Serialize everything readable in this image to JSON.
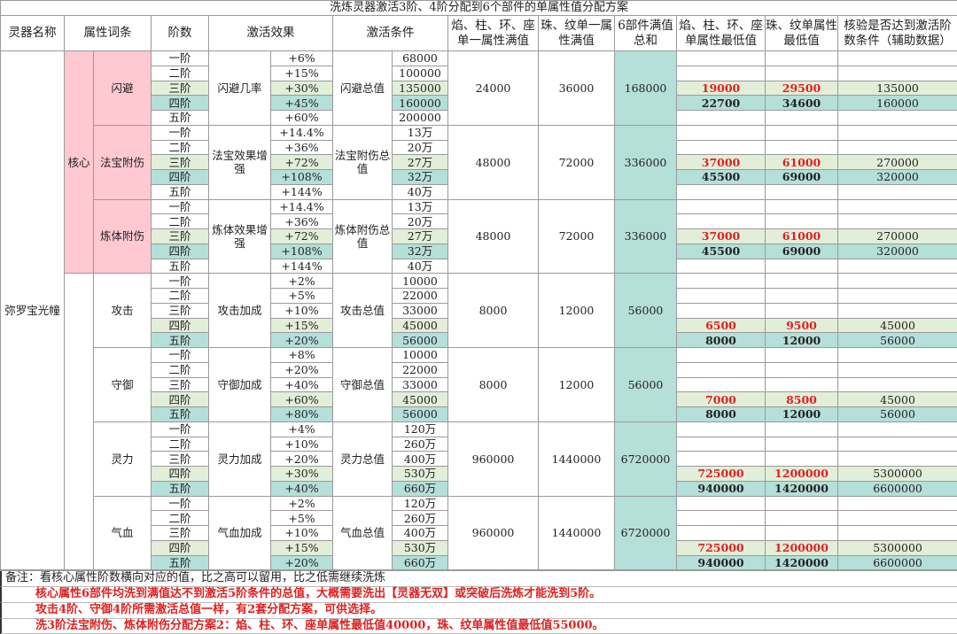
{
  "title": "洗炼灵器激活3阶、4阶分配到6个部件的单属性值分配方案",
  "headers": [
    "灵器名称",
    "属性词条",
    "阶数",
    "激活效果",
    "激活条件",
    "焰、柱、环、座单一属性满值",
    "珠、纹单一属性满值",
    "6部件满值总和",
    "焰、柱、环、座单属性最低值",
    "珠、纹单属性最低值",
    "核验是否达到激活阶数条件（辅助数据）"
  ],
  "item_name": "弥罗宝光幢",
  "core_label": "核心",
  "colors": {
    "pink": "#ffc9d2",
    "green": "#e3eed9",
    "teal": "#b5dfd9",
    "red": "#e02020"
  },
  "groups": [
    {
      "attr": "闪避",
      "core": true,
      "effect_name": "闪避几率",
      "cond_name": "闪避总值",
      "tiers": [
        "一阶",
        "二阶",
        "三阶",
        "四阶",
        "五阶"
      ],
      "effects": [
        "+6%",
        "+15%",
        "+30%",
        "+45%",
        "+60%"
      ],
      "conds": [
        "68000",
        "100000",
        "135000",
        "160000",
        "200000"
      ],
      "full_a": "24000",
      "full_b": "36000",
      "total": "168000",
      "mins": [
        {
          "tier": "三阶",
          "a": "19000",
          "b": "29500",
          "check": "135000"
        },
        {
          "tier": "四阶",
          "a": "22700",
          "b": "34600",
          "check": "160000"
        }
      ]
    },
    {
      "attr": "法宝附伤",
      "core": true,
      "effect_name": "法宝效果增强",
      "cond_name": "法宝附伤总值",
      "tiers": [
        "一阶",
        "二阶",
        "三阶",
        "四阶",
        "五阶"
      ],
      "effects": [
        "+14.4%",
        "+36%",
        "+72%",
        "+108%",
        "+144%"
      ],
      "conds": [
        "13万",
        "20万",
        "27万",
        "32万",
        "40万"
      ],
      "full_a": "48000",
      "full_b": "72000",
      "total": "336000",
      "mins": [
        {
          "tier": "三阶",
          "a": "37000",
          "b": "61000",
          "check": "270000"
        },
        {
          "tier": "四阶",
          "a": "45500",
          "b": "69000",
          "check": "320000"
        }
      ]
    },
    {
      "attr": "炼体附伤",
      "core": true,
      "effect_name": "炼体效果增强",
      "cond_name": "炼体附伤总值",
      "tiers": [
        "一阶",
        "二阶",
        "三阶",
        "四阶",
        "五阶"
      ],
      "effects": [
        "+14.4%",
        "+36%",
        "+72%",
        "+108%",
        "+144%"
      ],
      "conds": [
        "13万",
        "20万",
        "27万",
        "32万",
        "40万"
      ],
      "full_a": "48000",
      "full_b": "72000",
      "total": "336000",
      "mins": [
        {
          "tier": "三阶",
          "a": "37000",
          "b": "61000",
          "check": "270000"
        },
        {
          "tier": "四阶",
          "a": "45500",
          "b": "69000",
          "check": "320000"
        }
      ]
    },
    {
      "attr": "攻击",
      "core": false,
      "effect_name": "攻击加成",
      "cond_name": "攻击总值",
      "tiers": [
        "一阶",
        "二阶",
        "三阶",
        "四阶",
        "五阶"
      ],
      "effects": [
        "+2%",
        "+5%",
        "+10%",
        "+15%",
        "+20%"
      ],
      "conds": [
        "10000",
        "22000",
        "33000",
        "45000",
        "56000"
      ],
      "full_a": "8000",
      "full_b": "12000",
      "total": "56000",
      "mins": [
        {
          "tier": "四阶",
          "a": "6500",
          "b": "9500",
          "check": "45000"
        },
        {
          "tier": "五阶",
          "a": "8000",
          "b": "12000",
          "check": "56000"
        }
      ]
    },
    {
      "attr": "守御",
      "core": false,
      "effect_name": "守御加成",
      "cond_name": "守御总值",
      "tiers": [
        "一阶",
        "二阶",
        "三阶",
        "四阶",
        "五阶"
      ],
      "effects": [
        "+8%",
        "+20%",
        "+40%",
        "+60%",
        "+80%"
      ],
      "conds": [
        "10000",
        "22000",
        "33000",
        "45000",
        "56000"
      ],
      "full_a": "8000",
      "full_b": "12000",
      "total": "56000",
      "mins": [
        {
          "tier": "四阶",
          "a": "7000",
          "b": "8500",
          "check": "45000"
        },
        {
          "tier": "五阶",
          "a": "8000",
          "b": "12000",
          "check": "56000"
        }
      ]
    },
    {
      "attr": "灵力",
      "core": false,
      "effect_name": "灵力加成",
      "cond_name": "灵力总值",
      "tiers": [
        "一阶",
        "二阶",
        "三阶",
        "四阶",
        "五阶"
      ],
      "effects": [
        "+4%",
        "+10%",
        "+20%",
        "+30%",
        "+40%"
      ],
      "conds": [
        "120万",
        "260万",
        "400万",
        "530万",
        "660万"
      ],
      "full_a": "960000",
      "full_b": "1440000",
      "total": "6720000",
      "mins": [
        {
          "tier": "四阶",
          "a": "725000",
          "b": "1200000",
          "check": "5300000"
        },
        {
          "tier": "五阶",
          "a": "940000",
          "b": "1420000",
          "check": "6600000"
        }
      ]
    },
    {
      "attr": "气血",
      "core": false,
      "effect_name": "气血加成",
      "cond_name": "气血总值",
      "tiers": [
        "一阶",
        "二阶",
        "三阶",
        "四阶",
        "五阶"
      ],
      "effects": [
        "+2%",
        "+5%",
        "+10%",
        "+15%",
        "+20%"
      ],
      "conds": [
        "120万",
        "260万",
        "400万",
        "530万",
        "660万"
      ],
      "full_a": "960000",
      "full_b": "1440000",
      "total": "6720000",
      "mins": [
        {
          "tier": "四阶",
          "a": "725000",
          "b": "1200000",
          "check": "5300000"
        },
        {
          "tier": "五阶",
          "a": "940000",
          "b": "1420000",
          "check": "6600000"
        }
      ]
    }
  ],
  "notes": [
    "备注：看核心属性阶数横向对应的值，比之高可以留用，比之低需继续洗炼",
    "核心属性6部件均洗到满值达不到激活5阶条件的总值，大概需要洗出【灵器无双】或突破后洗炼才能洗到5阶。",
    "攻击4阶、守御4阶所需激活总值一样，有2套分配方案，可供选择。",
    "洗3阶法宝附伤、炼体附伤分配方案2：焰、柱、环、座单属性最低值40000，珠、纹单属性值最低值55000。"
  ]
}
